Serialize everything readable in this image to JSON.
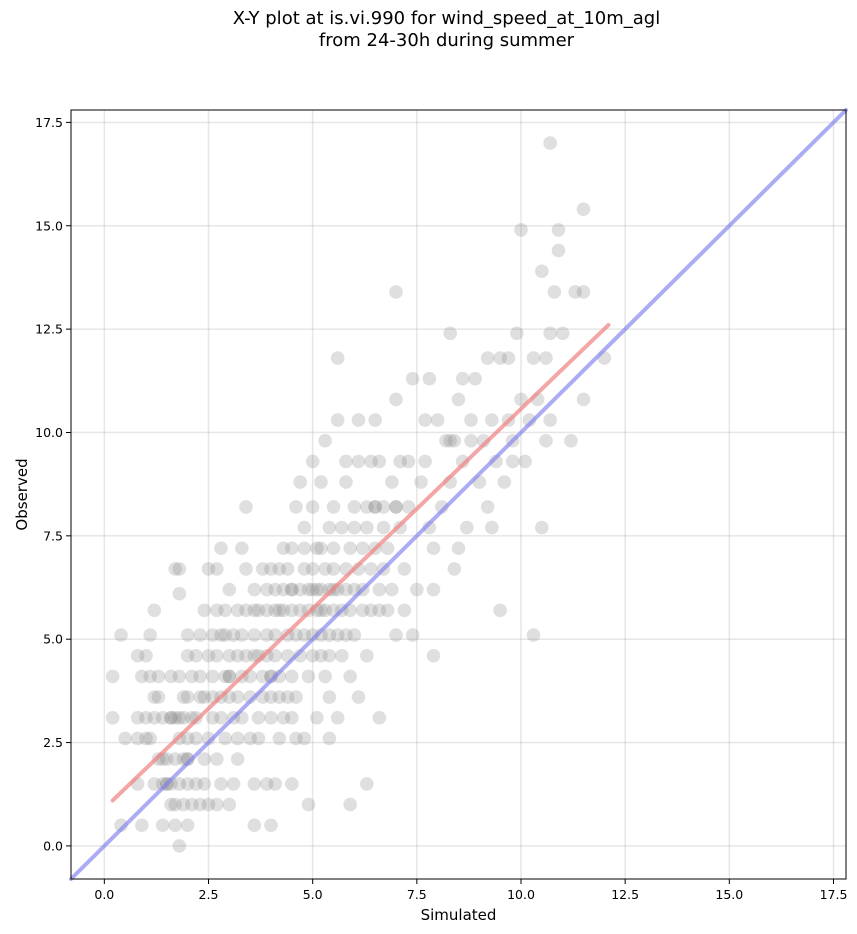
{
  "chart_data": {
    "type": "scatter",
    "title_line1": "X-Y plot at is.vi.990 for wind_speed_at_10m_agl",
    "title_line2": "from 24-30h during summer",
    "xlabel": "Simulated",
    "ylabel": "Observed",
    "xlim": [
      -0.8,
      17.8
    ],
    "ylim": [
      -0.8,
      17.8
    ],
    "xticks": [
      "0.0",
      "2.5",
      "5.0",
      "7.5",
      "10.0",
      "12.5",
      "15.0",
      "17.5"
    ],
    "yticks": [
      "0.0",
      "2.5",
      "5.0",
      "7.5",
      "10.0",
      "12.5",
      "15.0",
      "17.5"
    ],
    "xtick_values": [
      0,
      2.5,
      5,
      7.5,
      10,
      12.5,
      15,
      17.5
    ],
    "ytick_values": [
      0,
      2.5,
      5,
      7.5,
      10,
      12.5,
      15,
      17.5
    ],
    "grid": true,
    "colors": {
      "points": "#808080",
      "fit_line": "#f08080",
      "one_to_one": "#8080f0"
    },
    "fit_line": {
      "x": [
        0.2,
        12.1
      ],
      "y": [
        1.1,
        12.6
      ]
    },
    "one_to_one_line": {
      "x": [
        -0.8,
        17.8
      ],
      "y": [
        -0.8,
        17.8
      ]
    },
    "points": [
      [
        0.2,
        4.1
      ],
      [
        0.2,
        3.1
      ],
      [
        0.4,
        5.1
      ],
      [
        0.4,
        0.5
      ],
      [
        0.5,
        2.6
      ],
      [
        0.8,
        1.5
      ],
      [
        0.8,
        2.6
      ],
      [
        0.8,
        3.1
      ],
      [
        0.8,
        4.6
      ],
      [
        0.9,
        0.5
      ],
      [
        0.9,
        4.1
      ],
      [
        1.0,
        3.1
      ],
      [
        1.0,
        2.6
      ],
      [
        1.0,
        4.6
      ],
      [
        1.1,
        2.6
      ],
      [
        1.1,
        4.1
      ],
      [
        1.1,
        5.1
      ],
      [
        1.2,
        1.5
      ],
      [
        1.2,
        3.1
      ],
      [
        1.2,
        3.6
      ],
      [
        1.2,
        5.7
      ],
      [
        1.3,
        2.1
      ],
      [
        1.3,
        3.6
      ],
      [
        1.3,
        4.1
      ],
      [
        1.4,
        1.5
      ],
      [
        1.4,
        2.1
      ],
      [
        1.4,
        3.1
      ],
      [
        1.4,
        0.5
      ],
      [
        1.5,
        2.1
      ],
      [
        1.5,
        1.5
      ],
      [
        1.6,
        1.0
      ],
      [
        1.6,
        3.1
      ],
      [
        1.6,
        4.1
      ],
      [
        1.6,
        1.5
      ],
      [
        1.7,
        1.0
      ],
      [
        1.7,
        0.5
      ],
      [
        1.7,
        2.1
      ],
      [
        1.7,
        3.1
      ],
      [
        1.7,
        6.7
      ],
      [
        1.8,
        2.6
      ],
      [
        1.8,
        3.1
      ],
      [
        1.8,
        4.1
      ],
      [
        1.8,
        6.7
      ],
      [
        1.8,
        0.0
      ],
      [
        1.8,
        1.5
      ],
      [
        1.8,
        6.1
      ],
      [
        1.9,
        3.6
      ],
      [
        1.9,
        2.1
      ],
      [
        1.9,
        1.0
      ],
      [
        1.9,
        3.1
      ],
      [
        2.0,
        4.6
      ],
      [
        2.0,
        2.1
      ],
      [
        2.0,
        1.5
      ],
      [
        2.0,
        0.5
      ],
      [
        2.0,
        2.6
      ],
      [
        2.0,
        3.6
      ],
      [
        2.0,
        5.1
      ],
      [
        2.1,
        3.1
      ],
      [
        2.1,
        4.1
      ],
      [
        2.1,
        1.0
      ],
      [
        2.2,
        4.6
      ],
      [
        2.2,
        3.1
      ],
      [
        2.2,
        2.6
      ],
      [
        2.2,
        1.5
      ],
      [
        2.3,
        3.6
      ],
      [
        2.3,
        1.0
      ],
      [
        2.3,
        5.1
      ],
      [
        2.3,
        4.1
      ],
      [
        2.4,
        2.1
      ],
      [
        2.4,
        5.7
      ],
      [
        2.4,
        3.6
      ],
      [
        2.4,
        1.5
      ],
      [
        2.5,
        4.6
      ],
      [
        2.5,
        6.7
      ],
      [
        2.5,
        1.0
      ],
      [
        2.5,
        2.6
      ],
      [
        2.6,
        3.1
      ],
      [
        2.6,
        5.1
      ],
      [
        2.6,
        4.1
      ],
      [
        2.6,
        3.6
      ],
      [
        2.7,
        5.7
      ],
      [
        2.7,
        2.1
      ],
      [
        2.7,
        1.0
      ],
      [
        2.7,
        4.6
      ],
      [
        2.7,
        6.7
      ],
      [
        2.8,
        1.5
      ],
      [
        2.8,
        3.6
      ],
      [
        2.8,
        7.2
      ],
      [
        2.8,
        3.1
      ],
      [
        2.9,
        4.1
      ],
      [
        2.9,
        5.7
      ],
      [
        2.9,
        5.1
      ],
      [
        2.9,
        2.6
      ],
      [
        3.0,
        4.1
      ],
      [
        3.0,
        1.0
      ],
      [
        3.0,
        6.2
      ],
      [
        3.0,
        3.6
      ],
      [
        3.0,
        4.6
      ],
      [
        3.1,
        3.1
      ],
      [
        3.1,
        1.5
      ],
      [
        3.1,
        5.1
      ],
      [
        3.2,
        2.6
      ],
      [
        3.2,
        4.6
      ],
      [
        3.2,
        5.7
      ],
      [
        3.2,
        3.6
      ],
      [
        3.2,
        2.1
      ],
      [
        3.3,
        7.2
      ],
      [
        3.3,
        4.1
      ],
      [
        3.3,
        5.1
      ],
      [
        3.3,
        3.1
      ],
      [
        3.4,
        6.7
      ],
      [
        3.4,
        4.6
      ],
      [
        3.4,
        5.7
      ],
      [
        3.4,
        8.2
      ],
      [
        3.5,
        3.6
      ],
      [
        3.5,
        4.1
      ],
      [
        3.5,
        2.6
      ],
      [
        3.6,
        5.1
      ],
      [
        3.6,
        5.7
      ],
      [
        3.6,
        6.2
      ],
      [
        3.6,
        1.5
      ],
      [
        3.6,
        0.5
      ],
      [
        3.7,
        3.1
      ],
      [
        3.7,
        4.6
      ],
      [
        3.7,
        5.7
      ],
      [
        3.7,
        2.6
      ],
      [
        3.8,
        4.1
      ],
      [
        3.8,
        6.7
      ],
      [
        3.8,
        3.6
      ],
      [
        3.9,
        5.1
      ],
      [
        3.9,
        1.5
      ],
      [
        3.9,
        5.7
      ],
      [
        3.9,
        6.2
      ],
      [
        3.9,
        4.6
      ],
      [
        4.0,
        3.1
      ],
      [
        4.0,
        6.7
      ],
      [
        4.0,
        4.1
      ],
      [
        4.0,
        3.6
      ],
      [
        4.0,
        0.5
      ],
      [
        4.1,
        5.7
      ],
      [
        4.1,
        6.2
      ],
      [
        4.1,
        1.5
      ],
      [
        4.1,
        4.6
      ],
      [
        4.1,
        5.1
      ],
      [
        4.2,
        6.7
      ],
      [
        4.2,
        3.6
      ],
      [
        4.2,
        2.6
      ],
      [
        4.2,
        4.1
      ],
      [
        4.3,
        5.7
      ],
      [
        4.3,
        3.1
      ],
      [
        4.3,
        7.2
      ],
      [
        4.3,
        6.2
      ],
      [
        4.4,
        5.1
      ],
      [
        4.4,
        3.6
      ],
      [
        4.4,
        4.6
      ],
      [
        4.4,
        6.7
      ],
      [
        4.5,
        5.7
      ],
      [
        4.5,
        6.2
      ],
      [
        4.5,
        7.2
      ],
      [
        4.5,
        1.5
      ],
      [
        4.5,
        3.1
      ],
      [
        4.5,
        4.1
      ],
      [
        4.6,
        5.1
      ],
      [
        4.6,
        8.2
      ],
      [
        4.6,
        2.6
      ],
      [
        4.6,
        3.6
      ],
      [
        4.7,
        6.2
      ],
      [
        4.7,
        8.8
      ],
      [
        4.7,
        4.6
      ],
      [
        4.7,
        5.7
      ],
      [
        4.8,
        6.7
      ],
      [
        4.8,
        5.1
      ],
      [
        4.8,
        7.2
      ],
      [
        4.8,
        7.7
      ],
      [
        4.8,
        2.6
      ],
      [
        4.9,
        6.2
      ],
      [
        4.9,
        5.7
      ],
      [
        4.9,
        4.1
      ],
      [
        4.9,
        1.0
      ],
      [
        5.0,
        5.1
      ],
      [
        5.0,
        4.6
      ],
      [
        5.0,
        6.7
      ],
      [
        5.0,
        9.3
      ],
      [
        5.0,
        8.2
      ],
      [
        5.1,
        5.7
      ],
      [
        5.1,
        6.2
      ],
      [
        5.1,
        7.2
      ],
      [
        5.1,
        3.1
      ],
      [
        5.2,
        5.1
      ],
      [
        5.2,
        4.6
      ],
      [
        5.2,
        6.2
      ],
      [
        5.2,
        7.2
      ],
      [
        5.2,
        8.8
      ],
      [
        5.3,
        5.7
      ],
      [
        5.3,
        6.7
      ],
      [
        5.3,
        9.8
      ],
      [
        5.3,
        4.1
      ],
      [
        5.4,
        6.2
      ],
      [
        5.4,
        5.1
      ],
      [
        5.4,
        7.7
      ],
      [
        5.4,
        4.6
      ],
      [
        5.4,
        3.6
      ],
      [
        5.4,
        2.6
      ],
      [
        5.5,
        5.7
      ],
      [
        5.5,
        6.7
      ],
      [
        5.5,
        7.2
      ],
      [
        5.5,
        8.2
      ],
      [
        5.6,
        6.2
      ],
      [
        5.6,
        5.1
      ],
      [
        5.6,
        10.3
      ],
      [
        5.6,
        3.1
      ],
      [
        5.6,
        11.8
      ],
      [
        5.7,
        5.7
      ],
      [
        5.7,
        7.7
      ],
      [
        5.7,
        4.6
      ],
      [
        5.8,
        6.2
      ],
      [
        5.8,
        6.7
      ],
      [
        5.8,
        9.3
      ],
      [
        5.8,
        5.1
      ],
      [
        5.8,
        8.8
      ],
      [
        5.9,
        5.7
      ],
      [
        5.9,
        7.2
      ],
      [
        5.9,
        4.1
      ],
      [
        5.9,
        1.0
      ],
      [
        6.0,
        6.2
      ],
      [
        6.0,
        8.2
      ],
      [
        6.0,
        5.1
      ],
      [
        6.0,
        7.7
      ],
      [
        6.1,
        6.7
      ],
      [
        6.1,
        9.3
      ],
      [
        6.1,
        3.6
      ],
      [
        6.1,
        10.3
      ],
      [
        6.2,
        5.7
      ],
      [
        6.2,
        7.2
      ],
      [
        6.2,
        6.2
      ],
      [
        6.3,
        8.2
      ],
      [
        6.3,
        4.6
      ],
      [
        6.3,
        7.7
      ],
      [
        6.3,
        1.5
      ],
      [
        6.4,
        9.3
      ],
      [
        6.4,
        5.7
      ],
      [
        6.4,
        6.7
      ],
      [
        6.5,
        10.3
      ],
      [
        6.5,
        8.2
      ],
      [
        6.5,
        7.2
      ],
      [
        6.6,
        5.7
      ],
      [
        6.6,
        9.3
      ],
      [
        6.6,
        6.2
      ],
      [
        6.6,
        3.1
      ],
      [
        6.7,
        7.7
      ],
      [
        6.7,
        6.7
      ],
      [
        6.7,
        8.2
      ],
      [
        6.8,
        5.7
      ],
      [
        6.8,
        7.2
      ],
      [
        6.9,
        6.2
      ],
      [
        6.9,
        8.8
      ],
      [
        7.0,
        8.2
      ],
      [
        7.0,
        10.8
      ],
      [
        7.0,
        5.1
      ],
      [
        7.0,
        13.4
      ],
      [
        7.1,
        9.3
      ],
      [
        7.1,
        7.7
      ],
      [
        7.2,
        6.7
      ],
      [
        7.2,
        5.7
      ],
      [
        7.3,
        8.2
      ],
      [
        7.3,
        9.3
      ],
      [
        7.4,
        11.3
      ],
      [
        7.4,
        5.1
      ],
      [
        7.5,
        6.2
      ],
      [
        7.6,
        8.8
      ],
      [
        7.7,
        10.3
      ],
      [
        7.7,
        9.3
      ],
      [
        7.8,
        7.7
      ],
      [
        7.8,
        11.3
      ],
      [
        7.9,
        6.2
      ],
      [
        7.9,
        4.6
      ],
      [
        7.9,
        7.2
      ],
      [
        8.0,
        10.3
      ],
      [
        8.1,
        8.2
      ],
      [
        8.2,
        9.8
      ],
      [
        8.3,
        8.8
      ],
      [
        8.3,
        12.4
      ],
      [
        8.4,
        6.7
      ],
      [
        8.4,
        9.8
      ],
      [
        8.5,
        10.8
      ],
      [
        8.5,
        7.2
      ],
      [
        8.6,
        9.3
      ],
      [
        8.6,
        11.3
      ],
      [
        8.7,
        7.7
      ],
      [
        8.8,
        9.8
      ],
      [
        8.8,
        10.3
      ],
      [
        8.9,
        11.3
      ],
      [
        9.0,
        8.8
      ],
      [
        9.1,
        9.8
      ],
      [
        9.2,
        8.2
      ],
      [
        9.2,
        11.8
      ],
      [
        9.3,
        10.3
      ],
      [
        9.3,
        7.7
      ],
      [
        9.4,
        9.3
      ],
      [
        9.5,
        11.8
      ],
      [
        9.5,
        5.7
      ],
      [
        9.6,
        8.8
      ],
      [
        9.7,
        10.3
      ],
      [
        9.7,
        11.8
      ],
      [
        9.8,
        9.3
      ],
      [
        9.8,
        9.8
      ],
      [
        9.9,
        12.4
      ],
      [
        10.0,
        10.8
      ],
      [
        10.0,
        14.9
      ],
      [
        10.1,
        9.3
      ],
      [
        10.2,
        10.3
      ],
      [
        10.3,
        11.8
      ],
      [
        10.3,
        5.1
      ],
      [
        10.4,
        10.8
      ],
      [
        10.5,
        13.9
      ],
      [
        10.5,
        7.7
      ],
      [
        10.6,
        9.8
      ],
      [
        10.6,
        11.8
      ],
      [
        10.7,
        12.4
      ],
      [
        10.7,
        10.3
      ],
      [
        10.7,
        17.0
      ],
      [
        10.8,
        13.4
      ],
      [
        10.9,
        14.4
      ],
      [
        10.9,
        14.9
      ],
      [
        11.0,
        12.4
      ],
      [
        11.2,
        9.8
      ],
      [
        11.3,
        13.4
      ],
      [
        11.5,
        15.4
      ],
      [
        11.5,
        10.8
      ],
      [
        11.5,
        13.4
      ],
      [
        12.0,
        11.8
      ],
      [
        4.0,
        4.1
      ],
      [
        5.2,
        5.7
      ],
      [
        3.0,
        4.1
      ],
      [
        2.0,
        2.1
      ],
      [
        1.6,
        3.1
      ],
      [
        4.5,
        6.2
      ],
      [
        5.0,
        6.2
      ],
      [
        6.5,
        8.2
      ],
      [
        7.0,
        8.2
      ],
      [
        8.3,
        9.8
      ],
      [
        2.8,
        5.1
      ],
      [
        3.6,
        4.6
      ],
      [
        1.5,
        1.5
      ],
      [
        4.2,
        5.7
      ],
      [
        5.5,
        6.2
      ]
    ]
  }
}
